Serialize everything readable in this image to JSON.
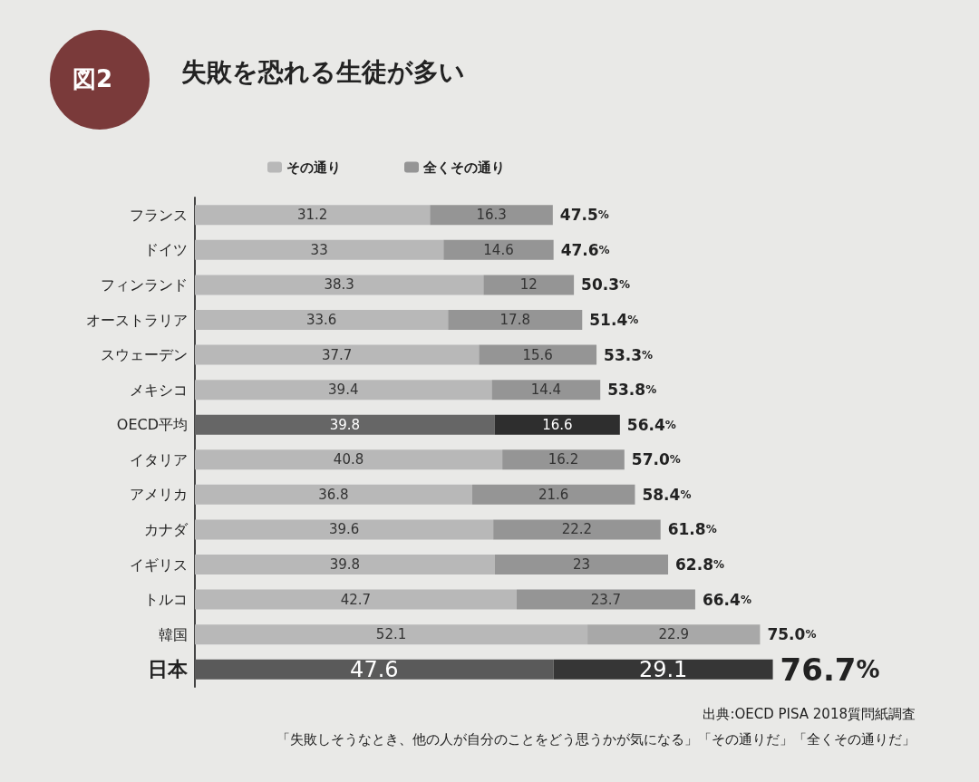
{
  "chart_data": {
    "type": "bar",
    "orientation": "horizontal",
    "stacked": true,
    "title": "失敗を恐れる生徒が多い",
    "categories": [
      "フランス",
      "ドイツ",
      "フィンランド",
      "オーストラリア",
      "スウェーデン",
      "メキシコ",
      "OECD平均",
      "イタリア",
      "アメリカ",
      "カナダ",
      "イギリス",
      "トルコ",
      "韓国",
      "日本"
    ],
    "series": [
      {
        "name": "その通り",
        "color": "#b8b8b8",
        "colors": [
          "#b8b8b8",
          "#b8b8b8",
          "#b8b8b8",
          "#b8b8b8",
          "#b8b8b8",
          "#b8b8b8",
          "#666666",
          "#b8b8b8",
          "#b8b8b8",
          "#b8b8b8",
          "#b8b8b8",
          "#b8b8b8",
          "#b8b8b8",
          "#5a5a5a"
        ],
        "values": [
          31.2,
          33,
          38.3,
          33.6,
          37.7,
          39.4,
          39.8,
          40.8,
          36.8,
          39.6,
          39.8,
          42.7,
          52.1,
          47.6
        ]
      },
      {
        "name": "全くその通り",
        "color": "#959595",
        "colors": [
          "#959595",
          "#959595",
          "#959595",
          "#959595",
          "#959595",
          "#959595",
          "#2e2e2e",
          "#959595",
          "#959595",
          "#959595",
          "#959595",
          "#959595",
          "#a8a8a8",
          "#363636"
        ],
        "values": [
          16.3,
          14.6,
          12,
          17.8,
          15.6,
          14.4,
          16.6,
          16.2,
          21.6,
          22.2,
          23,
          23.7,
          22.9,
          29.1
        ]
      }
    ],
    "totals": [
      "47.5%",
      "47.6%",
      "50.3%",
      "51.4%",
      "53.3%",
      "53.8%",
      "56.4%",
      "57.0%",
      "58.4%",
      "61.8%",
      "62.8%",
      "66.4%",
      "75.0%",
      "76.7%"
    ],
    "data_labels": true,
    "legend": "top left",
    "grid": false,
    "annotations": [
      "図2",
      "出典:OECD PISA 2018質問紙調査",
      "「失敗しそうなとき、他の人が自分のことをどう思うかが気になる」「その通りだ」「全くその通りだ」"
    ]
  }
}
